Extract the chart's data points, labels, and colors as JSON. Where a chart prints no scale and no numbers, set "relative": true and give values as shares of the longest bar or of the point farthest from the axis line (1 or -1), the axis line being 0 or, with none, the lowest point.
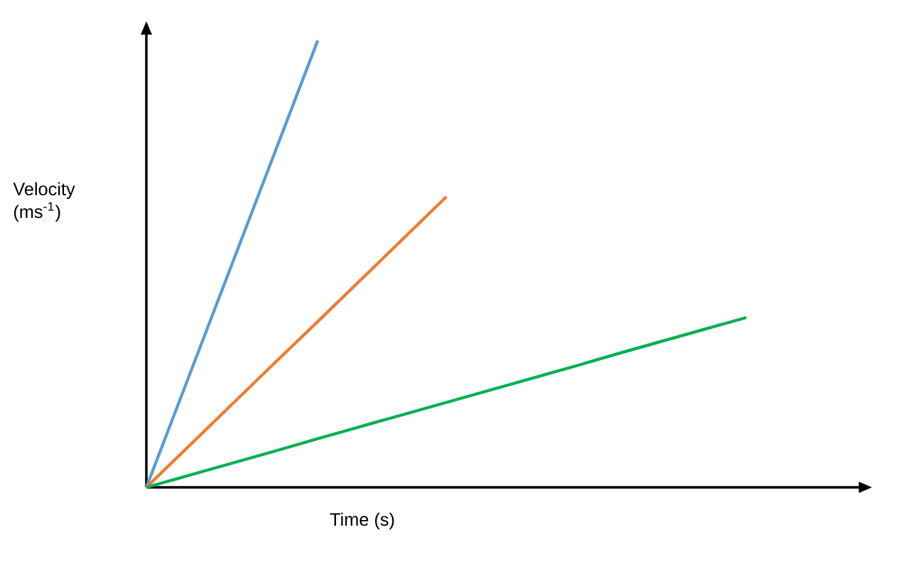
{
  "chart_data": {
    "type": "line",
    "relative": true,
    "xlabel": "Time (s)",
    "ylabel": "Velocity (ms$^{-1}$)",
    "categories": [
      null,
      null,
      null,
      null,
      null,
      null,
      null,
      null,
      null,
      null,
      null,
      null,
      null,
      null,
      null
    ],
    "series": [
      {
        "color": "#5b9bd5",
        "values": [
          0,
          0.25,
          0.5,
          0.75,
          1,
          null,
          null,
          null,
          null,
          null,
          null,
          null,
          null,
          null,
          null
        ]
      },
      {
        "color": "#ed7d31",
        "values": [
          0,
          0.093,
          0.186,
          0.279,
          0.371,
          0.464,
          0.557,
          0.65,
          null,
          null,
          null,
          null,
          null,
          null,
          null
        ]
      },
      {
        "color": "#00b050",
        "values": [
          0,
          0.027,
          0.054,
          0.081,
          0.109,
          0.136,
          0.163,
          0.19,
          0.217,
          0.244,
          0.271,
          0.299,
          0.326,
          0.353,
          0.38
        ]
      }
    ]
  }
}
